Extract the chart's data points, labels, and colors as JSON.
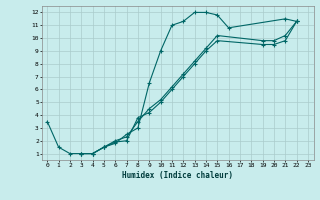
{
  "title": "",
  "xlabel": "Humidex (Indice chaleur)",
  "ylabel": "",
  "bg_color": "#c8ecec",
  "grid_color": "#aacccc",
  "line_color": "#006666",
  "marker_color": "#006666",
  "xlim": [
    -0.5,
    23.5
  ],
  "ylim": [
    0.5,
    12.5
  ],
  "xticks": [
    0,
    1,
    2,
    3,
    4,
    5,
    6,
    7,
    8,
    9,
    10,
    11,
    12,
    13,
    14,
    15,
    16,
    17,
    18,
    19,
    20,
    21,
    22,
    23
  ],
  "yticks": [
    1,
    2,
    3,
    4,
    5,
    6,
    7,
    8,
    9,
    10,
    11,
    12
  ],
  "line1_x": [
    0,
    1,
    2,
    3,
    4,
    5,
    6,
    7,
    8,
    9,
    10,
    11,
    12,
    13,
    14,
    15,
    16,
    21,
    22
  ],
  "line1_y": [
    3.5,
    1.5,
    1.0,
    1.0,
    1.0,
    1.5,
    1.8,
    2.5,
    3.0,
    6.5,
    9.0,
    11.0,
    11.3,
    12.0,
    12.0,
    11.8,
    10.8,
    11.5,
    11.3
  ],
  "line2_x": [
    3,
    4,
    5,
    6,
    7,
    8,
    9,
    10,
    11,
    12,
    13,
    14,
    15,
    19,
    20,
    21,
    22
  ],
  "line2_y": [
    1.0,
    1.0,
    1.5,
    2.0,
    2.3,
    3.5,
    4.5,
    5.2,
    6.2,
    7.2,
    8.2,
    9.2,
    10.2,
    9.8,
    9.8,
    10.2,
    11.3
  ],
  "line3_x": [
    3,
    4,
    5,
    6,
    7,
    8,
    9,
    10,
    11,
    12,
    13,
    14,
    15,
    19,
    20,
    21,
    22
  ],
  "line3_y": [
    1.0,
    1.0,
    1.5,
    1.9,
    2.0,
    3.8,
    4.2,
    5.0,
    6.0,
    7.0,
    8.0,
    9.0,
    9.8,
    9.5,
    9.5,
    9.8,
    11.3
  ]
}
